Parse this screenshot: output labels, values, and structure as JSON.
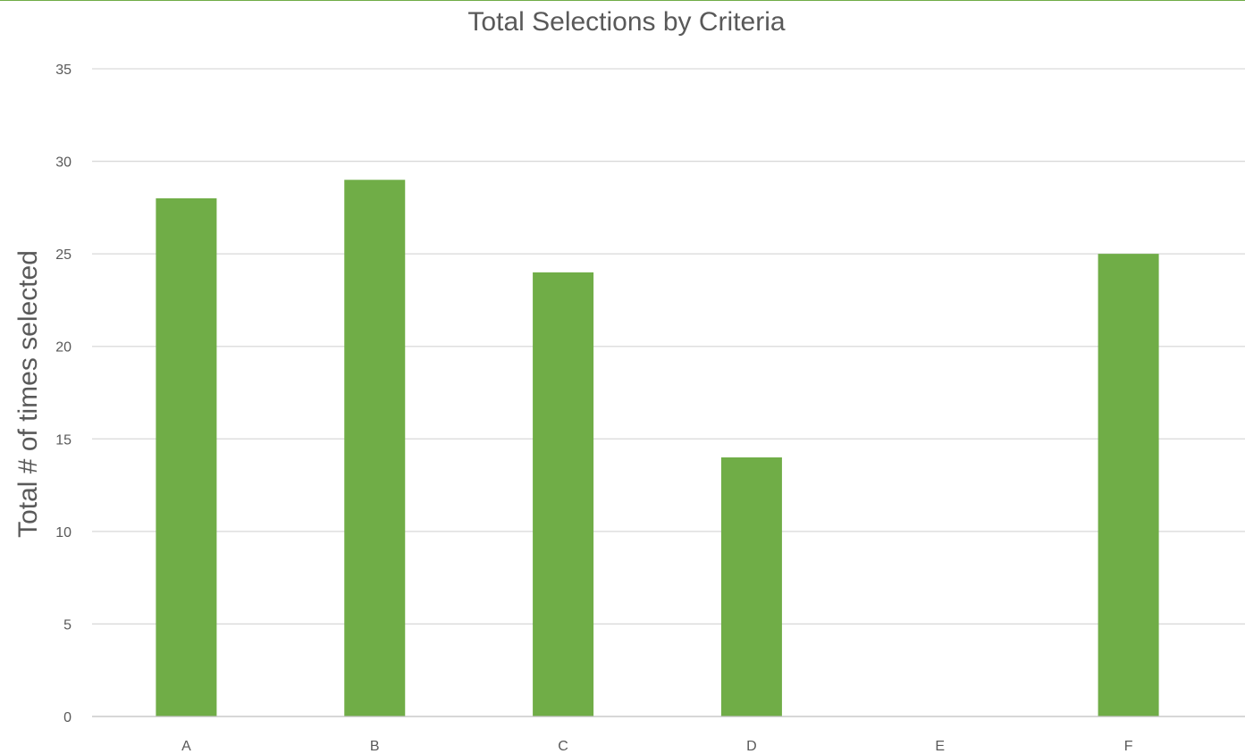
{
  "chart_data": {
    "type": "bar",
    "title": "Total Selections by Criteria",
    "xlabel": "",
    "ylabel": "Total # of times selected",
    "categories": [
      "A",
      "B",
      "C",
      "D",
      "E",
      "F"
    ],
    "values": [
      28,
      29,
      24,
      14,
      0,
      25
    ],
    "ylim": [
      0,
      35
    ],
    "yticks": [
      0,
      5,
      10,
      15,
      20,
      25,
      30,
      35
    ],
    "grid": true,
    "legend": "none",
    "bar_color": "#70ad47"
  }
}
